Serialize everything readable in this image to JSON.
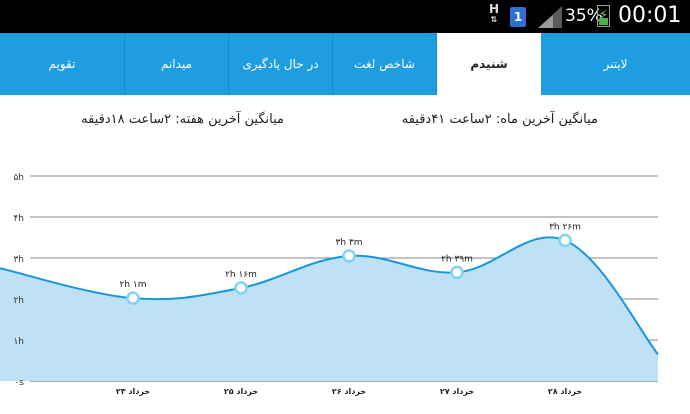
{
  "status_bar": {
    "network_type": "H",
    "sim_number": "1",
    "battery_percent": "35%",
    "time": "00:01",
    "icons": [
      "network-h-icon",
      "sim-card-icon",
      "signal-icon",
      "battery-charging-icon"
    ]
  },
  "tabs": [
    {
      "label": "لایتنر",
      "active": false
    },
    {
      "label": "شنیدم",
      "active": true
    },
    {
      "label": "شاخص لغت",
      "active": false
    },
    {
      "label": "در حال یادگیری",
      "active": false
    },
    {
      "label": "میدانم",
      "active": false
    },
    {
      "label": "تقویم",
      "active": false
    }
  ],
  "averages": {
    "month": "میانگین آخرین ماه: ۲ساعت ۴۱دقیقه",
    "week": "میانگین آخرین هفته: ۲ساعت ۱۸دقیقه"
  },
  "colors": {
    "accent": "#1e9ee0",
    "line": "#1a96da",
    "area_fill": "#bfe1f5"
  },
  "chart_data": {
    "type": "area",
    "y_ticks": [
      "۰s",
      "۱h",
      "۲h",
      "۳h",
      "۴h",
      "۵h"
    ],
    "ylim": [
      0,
      5
    ],
    "grid": true,
    "categories": [
      "۲۳ خرداد",
      "۲۵ خرداد",
      "۲۶ خرداد",
      "۲۷ خرداد",
      "۲۸ خرداد"
    ],
    "values": [
      2.02,
      2.27,
      3.05,
      2.65,
      3.43
    ],
    "labels": [
      "۲h ۱m",
      "۲h ۱۶m",
      "۳h ۳m",
      "۲h ۳۹m",
      "۳h ۲۶m"
    ]
  }
}
